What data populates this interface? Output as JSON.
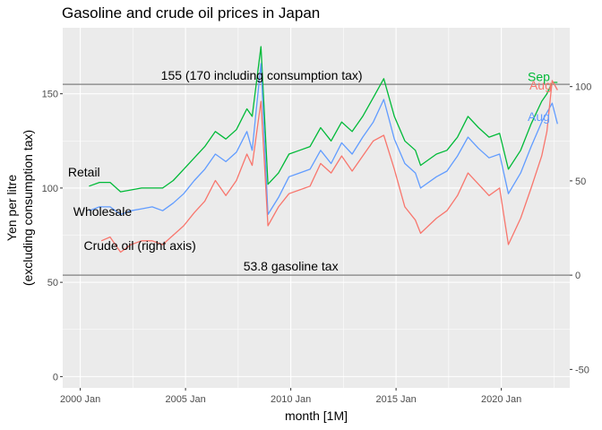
{
  "chart_data": {
    "type": "line",
    "title": "Gasoline and crude oil prices in Japan",
    "xlabel": "month [1M]",
    "ylabel_lines": [
      "Yen per litre",
      "(excluding consumption tax)"
    ],
    "x_ticks": [
      {
        "date": "2000-01",
        "label": "2000 Jan"
      },
      {
        "date": "2005-01",
        "label": "2005 Jan"
      },
      {
        "date": "2010-01",
        "label": "2010 Jan"
      },
      {
        "date": "2015-01",
        "label": "2015 Jan"
      },
      {
        "date": "2020-01",
        "label": "2020 Jan"
      }
    ],
    "xlim": [
      "1999-03",
      "2023-04"
    ],
    "ylim": [
      -6,
      185
    ],
    "y_ticks_left": [
      0,
      50,
      100,
      150
    ],
    "y2_ticks": [
      -50,
      0,
      50,
      100
    ],
    "y2_transform": {
      "offset": 53.8,
      "scale": 1.0
    },
    "grid": true,
    "reference_lines": [
      {
        "y": 155,
        "label": "155 (170 including consumption tax)",
        "label_date": "2003-11"
      },
      {
        "y": 53.8,
        "label": "53.8 gasoline tax",
        "label_date": "2007-10"
      }
    ],
    "series": [
      {
        "name": "Retail",
        "color": "#00BA38",
        "label_date": "1999-06",
        "label_y": 108.5,
        "end_label": "Sep",
        "end_label_date": "2021-04",
        "end_label_y": 159,
        "points": [
          [
            "2000-06",
            101
          ],
          [
            "2000-12",
            103
          ],
          [
            "2001-06",
            103
          ],
          [
            "2001-12",
            98
          ],
          [
            "2002-06",
            99
          ],
          [
            "2002-12",
            100
          ],
          [
            "2003-06",
            100
          ],
          [
            "2003-12",
            100
          ],
          [
            "2004-06",
            104
          ],
          [
            "2004-12",
            110
          ],
          [
            "2005-06",
            116
          ],
          [
            "2005-12",
            122
          ],
          [
            "2006-06",
            130
          ],
          [
            "2006-12",
            126
          ],
          [
            "2007-06",
            131
          ],
          [
            "2007-12",
            142
          ],
          [
            "2008-03",
            138
          ],
          [
            "2008-08",
            175
          ],
          [
            "2008-12",
            102
          ],
          [
            "2009-06",
            108
          ],
          [
            "2009-12",
            118
          ],
          [
            "2010-06",
            120
          ],
          [
            "2010-12",
            122
          ],
          [
            "2011-06",
            132
          ],
          [
            "2011-12",
            125
          ],
          [
            "2012-06",
            135
          ],
          [
            "2012-12",
            130
          ],
          [
            "2013-06",
            138
          ],
          [
            "2013-12",
            148
          ],
          [
            "2014-06",
            158
          ],
          [
            "2014-12",
            138
          ],
          [
            "2015-06",
            125
          ],
          [
            "2015-12",
            120
          ],
          [
            "2016-03",
            112
          ],
          [
            "2016-12",
            118
          ],
          [
            "2017-06",
            120
          ],
          [
            "2017-12",
            127
          ],
          [
            "2018-06",
            138
          ],
          [
            "2018-12",
            132
          ],
          [
            "2019-06",
            127
          ],
          [
            "2019-12",
            129
          ],
          [
            "2020-05",
            110
          ],
          [
            "2020-12",
            120
          ],
          [
            "2021-06",
            134
          ],
          [
            "2021-12",
            146
          ],
          [
            "2022-03",
            150
          ],
          [
            "2022-06",
            156
          ],
          [
            "2022-09",
            156
          ]
        ]
      },
      {
        "name": "Wholesale",
        "color": "#619CFF",
        "label_date": "1999-09",
        "label_y": 87.5,
        "end_label": "Aug",
        "end_label_date": "2021-04",
        "end_label_y": 138,
        "points": [
          [
            "2000-06",
            88
          ],
          [
            "2000-12",
            90
          ],
          [
            "2001-06",
            90
          ],
          [
            "2001-12",
            86
          ],
          [
            "2002-06",
            88
          ],
          [
            "2002-12",
            89
          ],
          [
            "2003-06",
            90
          ],
          [
            "2003-12",
            88
          ],
          [
            "2004-06",
            92
          ],
          [
            "2004-12",
            97
          ],
          [
            "2005-06",
            104
          ],
          [
            "2005-12",
            110
          ],
          [
            "2006-06",
            118
          ],
          [
            "2006-12",
            114
          ],
          [
            "2007-06",
            119
          ],
          [
            "2007-12",
            130
          ],
          [
            "2008-03",
            120
          ],
          [
            "2008-08",
            166
          ],
          [
            "2008-12",
            86
          ],
          [
            "2009-06",
            95
          ],
          [
            "2009-12",
            106
          ],
          [
            "2010-06",
            108
          ],
          [
            "2010-12",
            110
          ],
          [
            "2011-06",
            120
          ],
          [
            "2011-12",
            113
          ],
          [
            "2012-06",
            124
          ],
          [
            "2012-12",
            118
          ],
          [
            "2013-06",
            127
          ],
          [
            "2013-12",
            135
          ],
          [
            "2014-06",
            147
          ],
          [
            "2014-12",
            126
          ],
          [
            "2015-06",
            113
          ],
          [
            "2015-12",
            108
          ],
          [
            "2016-03",
            100
          ],
          [
            "2016-12",
            106
          ],
          [
            "2017-06",
            109
          ],
          [
            "2017-12",
            117
          ],
          [
            "2018-06",
            127
          ],
          [
            "2018-12",
            121
          ],
          [
            "2019-06",
            116
          ],
          [
            "2019-12",
            118
          ],
          [
            "2020-05",
            97
          ],
          [
            "2020-12",
            108
          ],
          [
            "2021-06",
            122
          ],
          [
            "2021-12",
            135
          ],
          [
            "2022-03",
            140
          ],
          [
            "2022-06",
            145
          ],
          [
            "2022-09",
            134
          ]
        ]
      },
      {
        "name": "Crude oil (right axis)",
        "color": "#F8766D",
        "label_date": "2000-03",
        "label_y": 69.5,
        "end_label": "Aug",
        "end_label_date": "2021-05",
        "end_label_y": 154.5,
        "points": [
          [
            "2001-01",
            72
          ],
          [
            "2001-06",
            74
          ],
          [
            "2001-12",
            66
          ],
          [
            "2002-06",
            70
          ],
          [
            "2002-12",
            72
          ],
          [
            "2003-06",
            72
          ],
          [
            "2003-12",
            70
          ],
          [
            "2004-06",
            75
          ],
          [
            "2004-12",
            80
          ],
          [
            "2005-06",
            87
          ],
          [
            "2005-12",
            93
          ],
          [
            "2006-06",
            104
          ],
          [
            "2006-12",
            96
          ],
          [
            "2007-06",
            104
          ],
          [
            "2007-12",
            118
          ],
          [
            "2008-03",
            112
          ],
          [
            "2008-08",
            146
          ],
          [
            "2008-12",
            80
          ],
          [
            "2009-06",
            90
          ],
          [
            "2009-12",
            97
          ],
          [
            "2010-06",
            99
          ],
          [
            "2010-12",
            101
          ],
          [
            "2011-06",
            113
          ],
          [
            "2011-12",
            108
          ],
          [
            "2012-06",
            117
          ],
          [
            "2012-12",
            109
          ],
          [
            "2013-06",
            117
          ],
          [
            "2013-12",
            125
          ],
          [
            "2014-06",
            128
          ],
          [
            "2014-12",
            110
          ],
          [
            "2015-06",
            90
          ],
          [
            "2015-12",
            83
          ],
          [
            "2016-03",
            76
          ],
          [
            "2016-12",
            84
          ],
          [
            "2017-06",
            88
          ],
          [
            "2017-12",
            96
          ],
          [
            "2018-06",
            108
          ],
          [
            "2018-12",
            102
          ],
          [
            "2019-06",
            96
          ],
          [
            "2019-12",
            100
          ],
          [
            "2020-05",
            70
          ],
          [
            "2020-12",
            84
          ],
          [
            "2021-06",
            100
          ],
          [
            "2021-12",
            117
          ],
          [
            "2022-03",
            130
          ],
          [
            "2022-06",
            157
          ],
          [
            "2022-09",
            152
          ]
        ]
      }
    ]
  }
}
